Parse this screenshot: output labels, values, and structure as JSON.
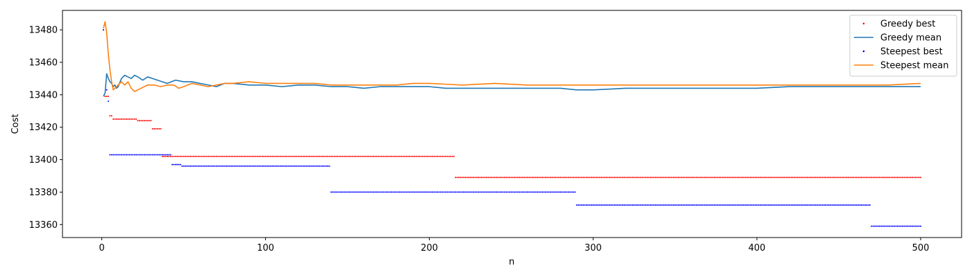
{
  "chart_data": {
    "type": "line",
    "title": "",
    "xlabel": "n",
    "ylabel": "Cost",
    "xlim": [
      -24,
      525
    ],
    "ylim": [
      13352,
      13492
    ],
    "xticks": [
      0,
      100,
      200,
      300,
      400,
      500
    ],
    "yticks": [
      13360,
      13380,
      13400,
      13420,
      13440,
      13460,
      13480
    ],
    "grid": false,
    "legend_position": "top-right",
    "series": [
      {
        "name": "Greedy best",
        "kind": "scatter",
        "color": "#ff0000",
        "steps": [
          {
            "from": 1,
            "to": 1,
            "value": 13480
          },
          {
            "from": 2,
            "to": 4,
            "value": 13439
          },
          {
            "from": 5,
            "to": 6,
            "value": 13427
          },
          {
            "from": 7,
            "to": 21,
            "value": 13425
          },
          {
            "from": 22,
            "to": 30,
            "value": 13424
          },
          {
            "from": 31,
            "to": 36,
            "value": 13419
          },
          {
            "from": 37,
            "to": 215,
            "value": 13402
          },
          {
            "from": 216,
            "to": 500,
            "value": 13389
          }
        ]
      },
      {
        "name": "Greedy mean",
        "kind": "line",
        "color": "#1f77b4",
        "points": [
          [
            1,
            13439
          ],
          [
            2,
            13441
          ],
          [
            3,
            13453
          ],
          [
            4,
            13450
          ],
          [
            5,
            13448
          ],
          [
            6,
            13447
          ],
          [
            7,
            13445
          ],
          [
            8,
            13446
          ],
          [
            9,
            13444
          ],
          [
            10,
            13445
          ],
          [
            12,
            13450
          ],
          [
            14,
            13452
          ],
          [
            16,
            13451
          ],
          [
            18,
            13450
          ],
          [
            20,
            13452
          ],
          [
            22,
            13451
          ],
          [
            25,
            13449
          ],
          [
            28,
            13451
          ],
          [
            31,
            13450
          ],
          [
            34,
            13449
          ],
          [
            37,
            13448
          ],
          [
            40,
            13447
          ],
          [
            45,
            13449
          ],
          [
            50,
            13448
          ],
          [
            55,
            13448
          ],
          [
            60,
            13447
          ],
          [
            65,
            13446
          ],
          [
            70,
            13445
          ],
          [
            75,
            13447
          ],
          [
            80,
            13447
          ],
          [
            90,
            13446
          ],
          [
            100,
            13446
          ],
          [
            110,
            13445
          ],
          [
            120,
            13446
          ],
          [
            130,
            13446
          ],
          [
            140,
            13445
          ],
          [
            150,
            13445
          ],
          [
            160,
            13444
          ],
          [
            170,
            13445
          ],
          [
            180,
            13445
          ],
          [
            190,
            13445
          ],
          [
            200,
            13445
          ],
          [
            210,
            13444
          ],
          [
            220,
            13444
          ],
          [
            240,
            13444
          ],
          [
            260,
            13444
          ],
          [
            280,
            13444
          ],
          [
            290,
            13443
          ],
          [
            300,
            13443
          ],
          [
            320,
            13444
          ],
          [
            340,
            13444
          ],
          [
            360,
            13444
          ],
          [
            380,
            13444
          ],
          [
            400,
            13444
          ],
          [
            420,
            13445
          ],
          [
            440,
            13445
          ],
          [
            460,
            13445
          ],
          [
            480,
            13445
          ],
          [
            500,
            13445
          ]
        ]
      },
      {
        "name": "Steepest best",
        "kind": "scatter",
        "color": "#0000ff",
        "steps": [
          {
            "from": 1,
            "to": 1,
            "value": 13480
          },
          {
            "from": 3,
            "to": 3,
            "value": 13443
          },
          {
            "from": 4,
            "to": 4,
            "value": 13436
          },
          {
            "from": 5,
            "to": 42,
            "value": 13403
          },
          {
            "from": 43,
            "to": 48,
            "value": 13397
          },
          {
            "from": 49,
            "to": 139,
            "value": 13396
          },
          {
            "from": 140,
            "to": 289,
            "value": 13380
          },
          {
            "from": 290,
            "to": 469,
            "value": 13372
          },
          {
            "from": 470,
            "to": 500,
            "value": 13359
          }
        ]
      },
      {
        "name": "Steepest mean",
        "kind": "line",
        "color": "#ff7f0e",
        "points": [
          [
            1,
            13481
          ],
          [
            2,
            13485
          ],
          [
            3,
            13478
          ],
          [
            4,
            13465
          ],
          [
            5,
            13455
          ],
          [
            6,
            13448
          ],
          [
            7,
            13443
          ],
          [
            8,
            13444
          ],
          [
            10,
            13446
          ],
          [
            12,
            13448
          ],
          [
            14,
            13446
          ],
          [
            16,
            13448
          ],
          [
            18,
            13444
          ],
          [
            20,
            13442
          ],
          [
            24,
            13444
          ],
          [
            28,
            13446
          ],
          [
            32,
            13446
          ],
          [
            36,
            13445
          ],
          [
            40,
            13446
          ],
          [
            44,
            13446
          ],
          [
            47,
            13444
          ],
          [
            50,
            13445
          ],
          [
            55,
            13447
          ],
          [
            60,
            13446
          ],
          [
            65,
            13445
          ],
          [
            70,
            13446
          ],
          [
            75,
            13447
          ],
          [
            80,
            13447
          ],
          [
            90,
            13448
          ],
          [
            100,
            13447
          ],
          [
            110,
            13447
          ],
          [
            120,
            13447
          ],
          [
            130,
            13447
          ],
          [
            140,
            13446
          ],
          [
            150,
            13446
          ],
          [
            160,
            13446
          ],
          [
            170,
            13446
          ],
          [
            180,
            13446
          ],
          [
            190,
            13447
          ],
          [
            200,
            13447
          ],
          [
            220,
            13446
          ],
          [
            240,
            13447
          ],
          [
            260,
            13446
          ],
          [
            280,
            13446
          ],
          [
            300,
            13446
          ],
          [
            320,
            13446
          ],
          [
            340,
            13446
          ],
          [
            360,
            13446
          ],
          [
            380,
            13446
          ],
          [
            400,
            13446
          ],
          [
            420,
            13446
          ],
          [
            440,
            13446
          ],
          [
            460,
            13446
          ],
          [
            480,
            13446
          ],
          [
            500,
            13447
          ]
        ]
      }
    ]
  }
}
